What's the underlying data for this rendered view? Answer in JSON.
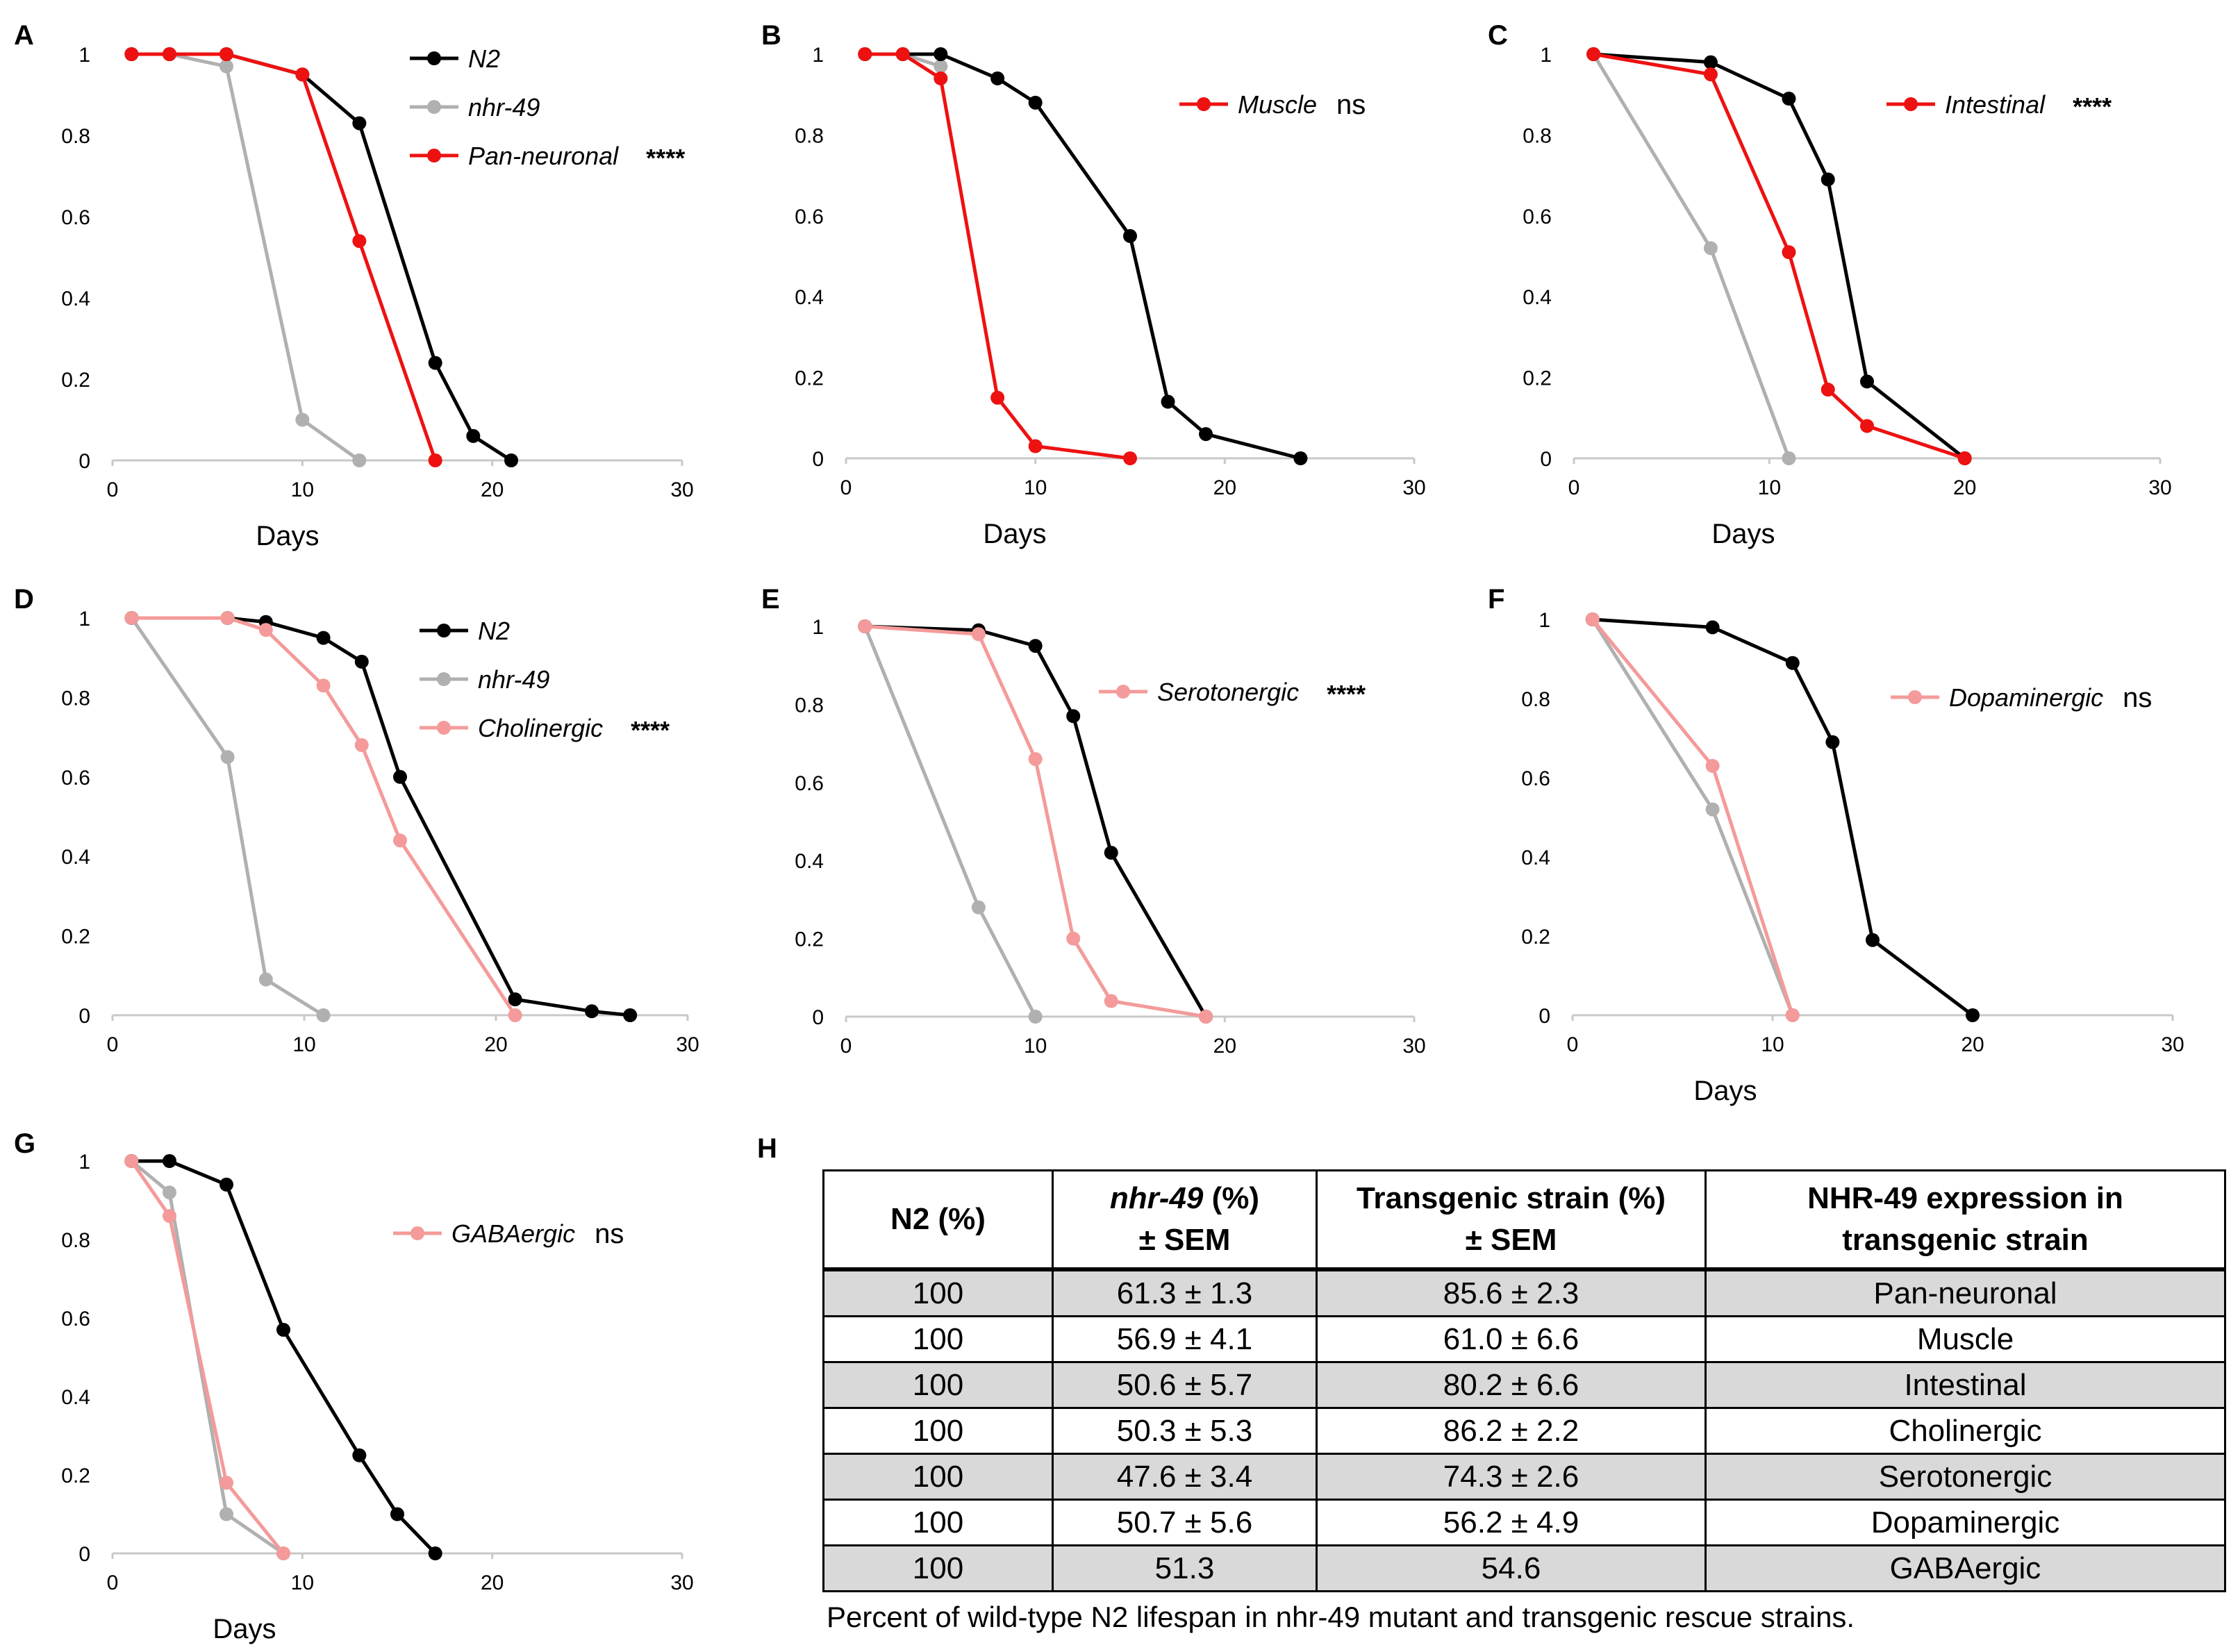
{
  "colors": {
    "n2": "#000000",
    "nhr49": "#b0b0b0",
    "red": "#ee1111",
    "pink": "#f49a9a"
  },
  "chart_data": [
    {
      "panel": "A",
      "type": "line",
      "xlabel": "Days",
      "ylabel": "",
      "xlim": [
        0,
        30
      ],
      "ylim": [
        0,
        1
      ],
      "xticks": [
        "0",
        "10",
        "20",
        "30"
      ],
      "yticks": [
        "0",
        "0.2",
        "0.4",
        "0.6",
        "0.8",
        "1"
      ],
      "legend_position": "top-right",
      "legend": [
        {
          "label": "N2",
          "color": "n2"
        },
        {
          "label": "nhr-49",
          "color": "nhr49"
        },
        {
          "label": "Pan-neuronal",
          "color": "red",
          "sig": "****"
        }
      ],
      "series": [
        {
          "name": "N2",
          "color": "n2",
          "x": [
            1,
            3,
            6,
            10,
            13,
            17,
            19,
            21
          ],
          "y": [
            1,
            1,
            1,
            0.95,
            0.83,
            0.24,
            0.06,
            0
          ]
        },
        {
          "name": "nhr-49",
          "color": "nhr49",
          "x": [
            1,
            3,
            6,
            10,
            13
          ],
          "y": [
            1,
            1,
            0.97,
            0.1,
            0
          ]
        },
        {
          "name": "Pan-neuronal",
          "color": "red",
          "x": [
            1,
            3,
            6,
            10,
            13,
            17
          ],
          "y": [
            1,
            1,
            1,
            0.95,
            0.54,
            0
          ]
        }
      ]
    },
    {
      "panel": "B",
      "type": "line",
      "xlabel": "Days",
      "ylabel": "",
      "xlim": [
        0,
        30
      ],
      "ylim": [
        0,
        1
      ],
      "xticks": [
        "0",
        "10",
        "20",
        "30"
      ],
      "yticks": [
        "0",
        "0.2",
        "0.4",
        "0.6",
        "0.8",
        "1"
      ],
      "legend_position": "top-right",
      "legend": [
        {
          "label": "Muscle",
          "color": "red",
          "sig": "ns"
        }
      ],
      "series": [
        {
          "name": "N2",
          "color": "n2",
          "x": [
            1,
            3,
            5,
            8,
            10,
            15,
            17,
            19,
            24
          ],
          "y": [
            1,
            1,
            1,
            0.94,
            0.88,
            0.55,
            0.14,
            0.06,
            0
          ]
        },
        {
          "name": "nhr-49",
          "color": "nhr49",
          "x": [
            1,
            3,
            5
          ],
          "y": [
            1,
            1,
            0.97
          ]
        },
        {
          "name": "Muscle",
          "color": "red",
          "x": [
            1,
            3,
            5,
            8,
            10,
            15
          ],
          "y": [
            1,
            1,
            0.94,
            0.15,
            0.03,
            0
          ]
        }
      ]
    },
    {
      "panel": "C",
      "type": "line",
      "xlabel": "Days",
      "ylabel": "",
      "xlim": [
        0,
        30
      ],
      "ylim": [
        0,
        1
      ],
      "xticks": [
        "0",
        "10",
        "20",
        "30"
      ],
      "yticks": [
        "0",
        "0.2",
        "0.4",
        "0.6",
        "0.8",
        "1"
      ],
      "legend_position": "top-right",
      "legend": [
        {
          "label": "Intestinal",
          "color": "red",
          "sig": "****"
        }
      ],
      "series": [
        {
          "name": "N2",
          "color": "n2",
          "x": [
            1,
            7,
            11,
            13,
            15,
            20
          ],
          "y": [
            1,
            0.98,
            0.89,
            0.69,
            0.19,
            0
          ]
        },
        {
          "name": "nhr-49",
          "color": "nhr49",
          "x": [
            1,
            7,
            11
          ],
          "y": [
            1,
            0.52,
            0
          ]
        },
        {
          "name": "Intestinal",
          "color": "red",
          "x": [
            1,
            7,
            11,
            13,
            15,
            20
          ],
          "y": [
            1,
            0.95,
            0.51,
            0.17,
            0.08,
            0
          ]
        }
      ]
    },
    {
      "panel": "D",
      "type": "line",
      "xlabel": "",
      "ylabel": "",
      "xlim": [
        0,
        30
      ],
      "ylim": [
        0,
        1
      ],
      "xticks": [
        "0",
        "10",
        "20",
        "30"
      ],
      "yticks": [
        "0",
        "0.2",
        "0.4",
        "0.6",
        "0.8",
        "1"
      ],
      "legend_position": "top-right",
      "legend": [
        {
          "label": "N2",
          "color": "n2"
        },
        {
          "label": "nhr-49",
          "color": "nhr49"
        },
        {
          "label": "Cholinergic",
          "color": "pink",
          "sig": "****"
        }
      ],
      "series": [
        {
          "name": "N2",
          "color": "n2",
          "x": [
            1,
            6,
            8,
            11,
            13,
            15,
            21,
            25,
            27
          ],
          "y": [
            1,
            1,
            0.99,
            0.95,
            0.89,
            0.6,
            0.04,
            0.01,
            0
          ]
        },
        {
          "name": "nhr-49",
          "color": "nhr49",
          "x": [
            1,
            6,
            8,
            11
          ],
          "y": [
            1,
            0.65,
            0.09,
            0
          ]
        },
        {
          "name": "Cholinergic",
          "color": "pink",
          "x": [
            1,
            6,
            8,
            11,
            13,
            15,
            21
          ],
          "y": [
            1,
            1,
            0.97,
            0.83,
            0.68,
            0.44,
            0
          ]
        }
      ]
    },
    {
      "panel": "E",
      "type": "line",
      "xlabel": "",
      "ylabel": "",
      "xlim": [
        0,
        30
      ],
      "ylim": [
        0,
        1
      ],
      "xticks": [
        "0",
        "10",
        "20",
        "30"
      ],
      "yticks": [
        "0",
        "0.2",
        "0.4",
        "0.6",
        "0.8",
        "1"
      ],
      "legend_position": "top-right",
      "legend": [
        {
          "label": "Serotonergic",
          "color": "pink",
          "sig": "****"
        }
      ],
      "series": [
        {
          "name": "N2",
          "color": "n2",
          "x": [
            1,
            7,
            10,
            12,
            14,
            19
          ],
          "y": [
            1,
            0.99,
            0.95,
            0.77,
            0.42,
            0
          ]
        },
        {
          "name": "nhr-49",
          "color": "nhr49",
          "x": [
            1,
            7,
            10
          ],
          "y": [
            1,
            0.28,
            0
          ]
        },
        {
          "name": "Serotonergic",
          "color": "pink",
          "x": [
            1,
            7,
            10,
            12,
            14,
            19
          ],
          "y": [
            1,
            0.98,
            0.66,
            0.2,
            0.04,
            0
          ]
        }
      ]
    },
    {
      "panel": "F",
      "type": "line",
      "xlabel": "Days",
      "ylabel": "",
      "xlim": [
        0,
        30
      ],
      "ylim": [
        0,
        1
      ],
      "xticks": [
        "0",
        "10",
        "20",
        "30"
      ],
      "yticks": [
        "0",
        "0.2",
        "0.4",
        "0.6",
        "0.8",
        "1"
      ],
      "legend_position": "top-right",
      "legend": [
        {
          "label": "Dopaminergic",
          "color": "pink",
          "sig": "ns"
        }
      ],
      "series": [
        {
          "name": "N2",
          "color": "n2",
          "x": [
            1,
            7,
            11,
            13,
            15,
            20
          ],
          "y": [
            1,
            0.98,
            0.89,
            0.69,
            0.19,
            0
          ]
        },
        {
          "name": "nhr-49",
          "color": "nhr49",
          "x": [
            1,
            7,
            11
          ],
          "y": [
            1,
            0.52,
            0
          ]
        },
        {
          "name": "Dopaminergic",
          "color": "pink",
          "x": [
            1,
            7,
            11
          ],
          "y": [
            1,
            0.63,
            0
          ]
        }
      ]
    },
    {
      "panel": "G",
      "type": "line",
      "xlabel": "Days",
      "ylabel": "",
      "xlim": [
        0,
        30
      ],
      "ylim": [
        0,
        1
      ],
      "xticks": [
        "0",
        "10",
        "20",
        "30"
      ],
      "yticks": [
        "0",
        "0.2",
        "0.4",
        "0.6",
        "0.8",
        "1"
      ],
      "legend_position": "top-right",
      "legend": [
        {
          "label": "GABAergic",
          "color": "pink",
          "sig": "ns"
        }
      ],
      "series": [
        {
          "name": "N2",
          "color": "n2",
          "x": [
            1,
            3,
            6,
            9,
            13,
            15,
            17
          ],
          "y": [
            1,
            1,
            0.94,
            0.57,
            0.25,
            0.1,
            0
          ]
        },
        {
          "name": "nhr-49",
          "color": "nhr49",
          "x": [
            1,
            3,
            6,
            9
          ],
          "y": [
            1,
            0.92,
            0.1,
            0
          ]
        },
        {
          "name": "GABAergic",
          "color": "pink",
          "x": [
            1,
            3,
            6,
            9
          ],
          "y": [
            1,
            0.86,
            0.18,
            0
          ]
        }
      ]
    }
  ],
  "table": {
    "letter": "H",
    "headers": {
      "col1": "N2 (%)",
      "col2_italic": "nhr-49",
      "col2_rest": " (%)",
      "col2_line2": "± SEM",
      "col3_line1": "Transgenic strain (%)",
      "col3_line2": "± SEM",
      "col4_line1": "NHR-49 expression in",
      "col4_line2": "transgenic strain"
    },
    "rows": [
      [
        "100",
        "61.3 ± 1.3",
        "85.6 ± 2.3",
        "Pan-neuronal"
      ],
      [
        "100",
        "56.9 ± 4.1",
        "61.0 ± 6.6",
        "Muscle"
      ],
      [
        "100",
        "50.6 ± 5.7",
        "80.2 ± 6.6",
        "Intestinal"
      ],
      [
        "100",
        "50.3 ± 5.3",
        "86.2 ± 2.2",
        "Cholinergic"
      ],
      [
        "100",
        "47.6 ± 3.4",
        "74.3 ± 2.6",
        "Serotonergic"
      ],
      [
        "100",
        "50.7 ± 5.6",
        "56.2 ± 4.9",
        "Dopaminergic"
      ],
      [
        "100",
        "51.3",
        "54.6",
        "GABAergic"
      ]
    ],
    "caption": "Percent of wild-type N2 lifespan in nhr-49 mutant and transgenic rescue strains."
  }
}
